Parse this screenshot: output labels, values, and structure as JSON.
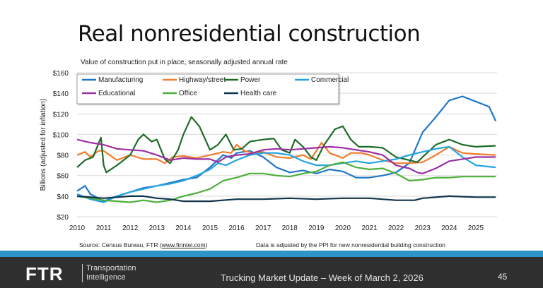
{
  "slide": {
    "title": "Real nonresidential construction",
    "subtitle": "Value of construction put in place, seasonally adjusted annual rate",
    "source_prefix": "Source: Census Bureau, FTR (",
    "source_link": "www.ftrintel.com",
    "source_suffix": ")",
    "note": "Data is adjusted by the PPI for new nonresidential building construction"
  },
  "footer": {
    "logo": "FTR",
    "tagline_1": "Transportation",
    "tagline_2": "Intelligence",
    "title": "Trucking Market Update – Week of March 2, 2026",
    "page": "45",
    "stripe_color": "#2d95c8"
  },
  "chart_data": {
    "type": "line",
    "title": "Real nonresidential construction",
    "ylabel": "Billions (adjusted for inflation)",
    "xlabel": "",
    "xlim": [
      2010,
      2025.8
    ],
    "ylim": [
      20,
      160
    ],
    "yticks": [
      20,
      40,
      60,
      80,
      100,
      120,
      140,
      160
    ],
    "ytick_labels": [
      "$20",
      "$40",
      "$60",
      "$80",
      "$100",
      "$120",
      "$140",
      "$160"
    ],
    "xticks": [
      2010,
      2011,
      2012,
      2013,
      2014,
      2015,
      2016,
      2017,
      2018,
      2019,
      2020,
      2021,
      2022,
      2023,
      2024,
      2025
    ],
    "grid": true,
    "legend_placement": "top-left",
    "series": [
      {
        "name": "Manufacturing",
        "color": "#1f77c8",
        "points": [
          [
            2010,
            45
          ],
          [
            2010.3,
            50
          ],
          [
            2010.5,
            42
          ],
          [
            2011,
            35
          ],
          [
            2011.5,
            40
          ],
          [
            2012,
            44
          ],
          [
            2012.5,
            48
          ],
          [
            2013,
            50
          ],
          [
            2013.5,
            53
          ],
          [
            2014,
            56
          ],
          [
            2014.5,
            58
          ],
          [
            2015,
            68
          ],
          [
            2015.5,
            80
          ],
          [
            2015.8,
            77
          ],
          [
            2016,
            82
          ],
          [
            2016.5,
            84
          ],
          [
            2017,
            78
          ],
          [
            2017.5,
            68
          ],
          [
            2018,
            63
          ],
          [
            2018.5,
            65
          ],
          [
            2019,
            62
          ],
          [
            2019.5,
            66
          ],
          [
            2020,
            64
          ],
          [
            2020.5,
            58
          ],
          [
            2021,
            58
          ],
          [
            2021.5,
            60
          ],
          [
            2022,
            63
          ],
          [
            2022.5,
            72
          ],
          [
            2023,
            102
          ],
          [
            2023.5,
            117
          ],
          [
            2024,
            133
          ],
          [
            2024.5,
            137
          ],
          [
            2025,
            132
          ],
          [
            2025.5,
            127
          ],
          [
            2025.75,
            113
          ]
        ]
      },
      {
        "name": "Highway/street",
        "color": "#f07d2e",
        "points": [
          [
            2010,
            80
          ],
          [
            2010.3,
            83
          ],
          [
            2010.5,
            78
          ],
          [
            2010.8,
            84
          ],
          [
            2011,
            84
          ],
          [
            2011.5,
            75
          ],
          [
            2012,
            80
          ],
          [
            2012.5,
            76
          ],
          [
            2013,
            76
          ],
          [
            2013.3,
            72
          ],
          [
            2013.6,
            78
          ],
          [
            2014,
            79
          ],
          [
            2014.5,
            77
          ],
          [
            2015,
            80
          ],
          [
            2015.5,
            83
          ],
          [
            2015.8,
            82
          ],
          [
            2016,
            90
          ],
          [
            2016.3,
            84
          ],
          [
            2016.6,
            82
          ],
          [
            2017,
            83
          ],
          [
            2017.5,
            78
          ],
          [
            2018,
            77
          ],
          [
            2018.5,
            80
          ],
          [
            2018.8,
            76
          ],
          [
            2019.2,
            92
          ],
          [
            2019.5,
            82
          ],
          [
            2020,
            77
          ],
          [
            2020.3,
            82
          ],
          [
            2020.7,
            82
          ],
          [
            2021,
            80
          ],
          [
            2021.5,
            75
          ],
          [
            2022,
            72
          ],
          [
            2022.5,
            72
          ],
          [
            2023,
            73
          ],
          [
            2023.5,
            80
          ],
          [
            2024,
            88
          ],
          [
            2024.5,
            82
          ],
          [
            2025,
            81
          ],
          [
            2025.75,
            80
          ]
        ]
      },
      {
        "name": "Power",
        "color": "#1e6b28",
        "points": [
          [
            2010,
            68
          ],
          [
            2010.3,
            75
          ],
          [
            2010.6,
            78
          ],
          [
            2010.9,
            97
          ],
          [
            2011,
            70
          ],
          [
            2011.1,
            63
          ],
          [
            2011.5,
            70
          ],
          [
            2012,
            80
          ],
          [
            2012.3,
            95
          ],
          [
            2012.5,
            100
          ],
          [
            2012.8,
            93
          ],
          [
            2013,
            95
          ],
          [
            2013.3,
            76
          ],
          [
            2013.5,
            72
          ],
          [
            2013.8,
            85
          ],
          [
            2014,
            100
          ],
          [
            2014.3,
            117
          ],
          [
            2014.6,
            108
          ],
          [
            2015,
            85
          ],
          [
            2015.3,
            90
          ],
          [
            2015.6,
            100
          ],
          [
            2015.9,
            85
          ],
          [
            2016.2,
            86
          ],
          [
            2016.5,
            93
          ],
          [
            2017,
            95
          ],
          [
            2017.4,
            96
          ],
          [
            2017.7,
            85
          ],
          [
            2018,
            82
          ],
          [
            2018.2,
            95
          ],
          [
            2018.5,
            88
          ],
          [
            2018.8,
            78
          ],
          [
            2019,
            75
          ],
          [
            2019.3,
            90
          ],
          [
            2019.7,
            105
          ],
          [
            2020,
            108
          ],
          [
            2020.3,
            95
          ],
          [
            2020.6,
            88
          ],
          [
            2021,
            88
          ],
          [
            2021.5,
            87
          ],
          [
            2022,
            78
          ],
          [
            2022.5,
            75
          ],
          [
            2022.8,
            73
          ],
          [
            2023,
            78
          ],
          [
            2023.5,
            90
          ],
          [
            2024,
            95
          ],
          [
            2024.5,
            90
          ],
          [
            2025,
            88
          ],
          [
            2025.75,
            89
          ]
        ]
      },
      {
        "name": "Commercial",
        "color": "#25a3e0",
        "points": [
          [
            2010,
            42
          ],
          [
            2010.5,
            37
          ],
          [
            2011,
            34
          ],
          [
            2011.5,
            40
          ],
          [
            2012,
            44
          ],
          [
            2012.5,
            47
          ],
          [
            2013,
            50
          ],
          [
            2013.5,
            52
          ],
          [
            2014,
            55
          ],
          [
            2014.5,
            60
          ],
          [
            2015,
            66
          ],
          [
            2015.3,
            72
          ],
          [
            2015.6,
            70
          ],
          [
            2016,
            75
          ],
          [
            2016.5,
            80
          ],
          [
            2017,
            82
          ],
          [
            2017.5,
            82
          ],
          [
            2018,
            80
          ],
          [
            2018.5,
            74
          ],
          [
            2019,
            70
          ],
          [
            2019.5,
            70
          ],
          [
            2020,
            72
          ],
          [
            2020.5,
            74
          ],
          [
            2021,
            72
          ],
          [
            2021.5,
            74
          ],
          [
            2022,
            76
          ],
          [
            2022.5,
            80
          ],
          [
            2023,
            83
          ],
          [
            2023.5,
            86
          ],
          [
            2024,
            88
          ],
          [
            2024.5,
            78
          ],
          [
            2025,
            70
          ],
          [
            2025.75,
            68
          ]
        ]
      },
      {
        "name": "Educational",
        "color": "#9b2fa3",
        "points": [
          [
            2010,
            95
          ],
          [
            2010.5,
            92
          ],
          [
            2011,
            90
          ],
          [
            2011.5,
            86
          ],
          [
            2012,
            85
          ],
          [
            2012.5,
            84
          ],
          [
            2013,
            80
          ],
          [
            2013.5,
            75
          ],
          [
            2014,
            77
          ],
          [
            2014.5,
            76
          ],
          [
            2015,
            76
          ],
          [
            2015.3,
            73
          ],
          [
            2015.6,
            78
          ],
          [
            2016,
            80
          ],
          [
            2016.5,
            81
          ],
          [
            2017,
            85
          ],
          [
            2017.5,
            86
          ],
          [
            2018,
            85
          ],
          [
            2018.5,
            86
          ],
          [
            2019,
            87
          ],
          [
            2019.5,
            88
          ],
          [
            2020,
            87
          ],
          [
            2020.5,
            85
          ],
          [
            2021,
            83
          ],
          [
            2021.5,
            80
          ],
          [
            2022,
            70
          ],
          [
            2022.3,
            68
          ],
          [
            2022.5,
            67
          ],
          [
            2022.8,
            63
          ],
          [
            2023,
            62
          ],
          [
            2023.5,
            67
          ],
          [
            2024,
            74
          ],
          [
            2024.5,
            76
          ],
          [
            2025,
            78
          ],
          [
            2025.75,
            78
          ]
        ]
      },
      {
        "name": "Office",
        "color": "#4caf3a",
        "points": [
          [
            2010,
            40
          ],
          [
            2010.5,
            38
          ],
          [
            2011,
            36
          ],
          [
            2011.5,
            35
          ],
          [
            2012,
            34
          ],
          [
            2012.5,
            36
          ],
          [
            2013,
            34
          ],
          [
            2013.5,
            36
          ],
          [
            2014,
            40
          ],
          [
            2014.5,
            43
          ],
          [
            2015,
            47
          ],
          [
            2015.5,
            55
          ],
          [
            2016,
            58
          ],
          [
            2016.5,
            62
          ],
          [
            2017,
            62
          ],
          [
            2017.5,
            60
          ],
          [
            2018,
            59
          ],
          [
            2018.5,
            62
          ],
          [
            2019,
            64
          ],
          [
            2019.5,
            70
          ],
          [
            2020,
            73
          ],
          [
            2020.5,
            68
          ],
          [
            2021,
            66
          ],
          [
            2021.5,
            67
          ],
          [
            2022,
            62
          ],
          [
            2022.5,
            55
          ],
          [
            2023,
            56
          ],
          [
            2023.5,
            58
          ],
          [
            2024,
            58
          ],
          [
            2024.5,
            59
          ],
          [
            2025,
            59
          ],
          [
            2025.75,
            59
          ]
        ]
      },
      {
        "name": "Health care",
        "color": "#10344d",
        "points": [
          [
            2010,
            40
          ],
          [
            2011,
            38
          ],
          [
            2012,
            40
          ],
          [
            2012.5,
            40
          ],
          [
            2013,
            38
          ],
          [
            2013.5,
            37
          ],
          [
            2014,
            35
          ],
          [
            2015,
            35
          ],
          [
            2016,
            37
          ],
          [
            2017,
            37
          ],
          [
            2018,
            38
          ],
          [
            2019,
            37
          ],
          [
            2020,
            38
          ],
          [
            2021,
            38
          ],
          [
            2022,
            36
          ],
          [
            2022.7,
            36
          ],
          [
            2023,
            38
          ],
          [
            2024,
            40
          ],
          [
            2025,
            39
          ],
          [
            2025.75,
            39
          ]
        ]
      }
    ]
  }
}
